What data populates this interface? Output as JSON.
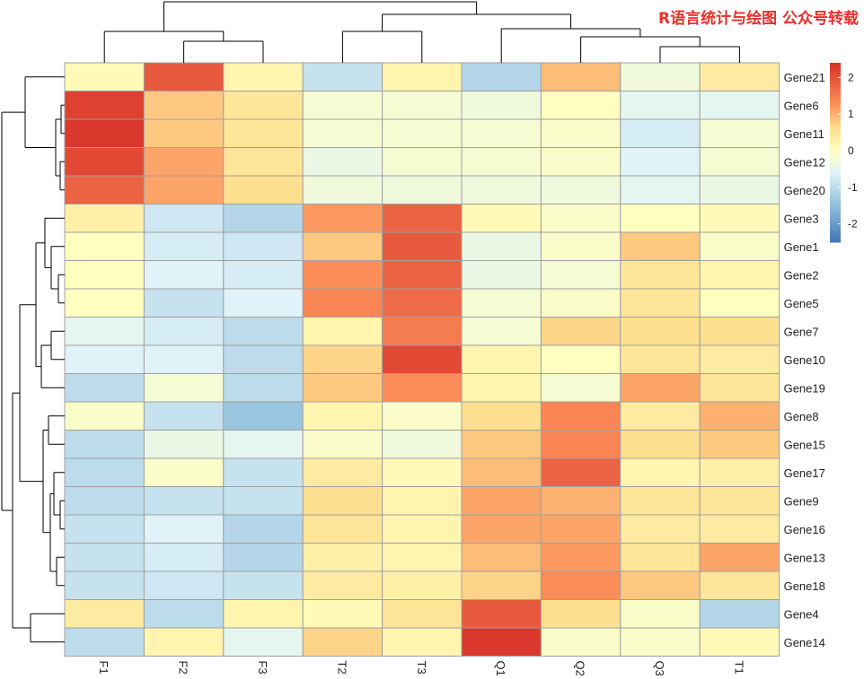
{
  "watermark": "R语言统计与绘图 公众号转载",
  "colors": {
    "low": "#4575b4",
    "mid": "#ffffbf",
    "high": "#d73027",
    "grid": "#a0a0a0"
  },
  "chart_data": {
    "type": "heatmap",
    "title": "",
    "columns": [
      "F1",
      "F2",
      "F3",
      "T2",
      "T3",
      "Q1",
      "Q2",
      "Q3",
      "T1"
    ],
    "rows": [
      "Gene21",
      "Gene6",
      "Gene11",
      "Gene12",
      "Gene20",
      "Gene3",
      "Gene1",
      "Gene2",
      "Gene5",
      "Gene7",
      "Gene10",
      "Gene19",
      "Gene8",
      "Gene15",
      "Gene17",
      "Gene9",
      "Gene16",
      "Gene13",
      "Gene18",
      "Gene4",
      "Gene14"
    ],
    "values": [
      [
        0.1,
        1.9,
        0.2,
        -0.9,
        0.2,
        -1.1,
        0.9,
        -0.3,
        0.4
      ],
      [
        2.2,
        0.8,
        0.5,
        -0.2,
        -0.2,
        -0.3,
        0.0,
        -0.5,
        -0.5
      ],
      [
        2.3,
        0.8,
        0.5,
        -0.2,
        -0.2,
        -0.2,
        -0.1,
        -0.7,
        -0.2
      ],
      [
        2.1,
        1.1,
        0.5,
        -0.4,
        -0.2,
        -0.2,
        -0.1,
        -0.6,
        -0.2
      ],
      [
        1.8,
        1.1,
        0.6,
        -0.3,
        -0.3,
        -0.3,
        -0.3,
        -0.5,
        -0.4
      ],
      [
        0.3,
        -0.8,
        -1.1,
        1.2,
        1.8,
        0.1,
        -0.1,
        0.0,
        0.1
      ],
      [
        0.0,
        -0.7,
        -0.8,
        0.8,
        1.9,
        -0.4,
        -0.1,
        0.8,
        -0.1
      ],
      [
        0.0,
        -0.6,
        -0.7,
        1.3,
        1.8,
        -0.4,
        -0.2,
        0.5,
        0.2
      ],
      [
        0.0,
        -0.9,
        -0.6,
        1.4,
        1.7,
        -0.2,
        -0.1,
        0.5,
        0.0
      ],
      [
        -0.5,
        -0.7,
        -1.0,
        0.2,
        1.5,
        -0.2,
        0.7,
        0.6,
        0.6
      ],
      [
        -0.6,
        -0.6,
        -1.0,
        0.7,
        2.1,
        0.2,
        0.0,
        0.5,
        0.4
      ],
      [
        -1.0,
        -0.2,
        -1.0,
        0.8,
        1.3,
        0.2,
        -0.2,
        1.1,
        0.5
      ],
      [
        -0.1,
        -0.9,
        -1.4,
        0.2,
        -0.1,
        0.6,
        1.4,
        0.4,
        1.0
      ],
      [
        -1.0,
        -0.4,
        -0.5,
        -0.1,
        -0.3,
        0.8,
        1.4,
        0.6,
        0.8
      ],
      [
        -1.0,
        -0.1,
        -0.9,
        0.4,
        0.1,
        0.9,
        1.8,
        0.2,
        0.3
      ],
      [
        -1.0,
        -0.9,
        -0.9,
        0.6,
        0.2,
        1.1,
        1.0,
        0.5,
        0.5
      ],
      [
        -0.9,
        -0.6,
        -1.1,
        0.5,
        0.2,
        1.1,
        1.1,
        0.4,
        0.4
      ],
      [
        -0.9,
        -0.7,
        -1.1,
        0.3,
        0.2,
        0.9,
        1.2,
        0.5,
        1.1
      ],
      [
        -0.9,
        -0.8,
        -0.9,
        0.4,
        0.3,
        0.7,
        1.3,
        0.8,
        0.5
      ],
      [
        0.4,
        -1.0,
        0.2,
        0.1,
        0.5,
        1.9,
        0.6,
        -0.1,
        -1.1
      ],
      [
        -1.0,
        0.2,
        -0.5,
        0.7,
        0.2,
        2.3,
        -0.1,
        -0.1,
        0.1
      ]
    ],
    "legend": {
      "ticks": [
        2,
        1,
        0,
        -1,
        -2
      ],
      "tick_labels": [
        "2",
        "1",
        "0",
        "-1",
        "-2"
      ],
      "range": [
        -2.5,
        2.4
      ]
    },
    "row_dendrogram": true,
    "col_dendrogram": true
  }
}
